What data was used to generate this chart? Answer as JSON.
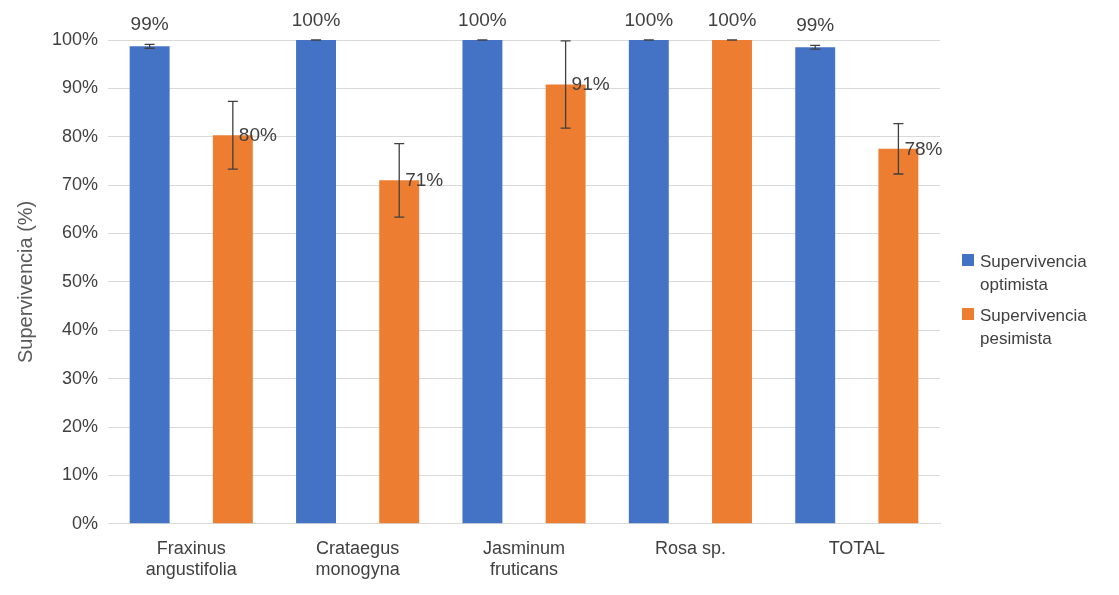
{
  "chart_data": {
    "type": "bar",
    "ylabel": "Supervivencia (%)",
    "categories": [
      "Fraxinus\nangustifolia",
      "Crataegus\nmonogyna",
      "Jasminum\nfruticans",
      "Rosa sp.",
      "TOTAL"
    ],
    "series": [
      {
        "name": "Supervivencia optimista",
        "color": "#4472c4",
        "values": [
          98.7,
          100,
          100,
          100,
          98.5
        ],
        "errors": [
          0.4,
          0,
          0,
          0,
          0.4
        ],
        "value_labels": [
          "99%",
          "100%",
          "100%",
          "100%",
          "99%"
        ]
      },
      {
        "name": "Supervivencia pesimista",
        "color": "#ed7d31",
        "values": [
          80.3,
          71,
          90.8,
          100,
          77.5
        ],
        "errors": [
          7,
          7.6,
          9,
          0,
          5.2
        ],
        "value_labels": [
          "80%",
          "71%",
          "91%",
          "100%",
          "78%"
        ]
      }
    ],
    "ylim": [
      0,
      100
    ],
    "yticks": [
      {
        "value": 0,
        "label": "0%"
      },
      {
        "value": 10,
        "label": "10%"
      },
      {
        "value": 20,
        "label": "20%"
      },
      {
        "value": 30,
        "label": "30%"
      },
      {
        "value": 40,
        "label": "40%"
      },
      {
        "value": 50,
        "label": "50%"
      },
      {
        "value": 60,
        "label": "60%"
      },
      {
        "value": 70,
        "label": "70%"
      },
      {
        "value": 80,
        "label": "80%"
      },
      {
        "value": 90,
        "label": "90%"
      },
      {
        "value": 100,
        "label": "100%"
      }
    ],
    "grid": "y",
    "legend": "right"
  }
}
